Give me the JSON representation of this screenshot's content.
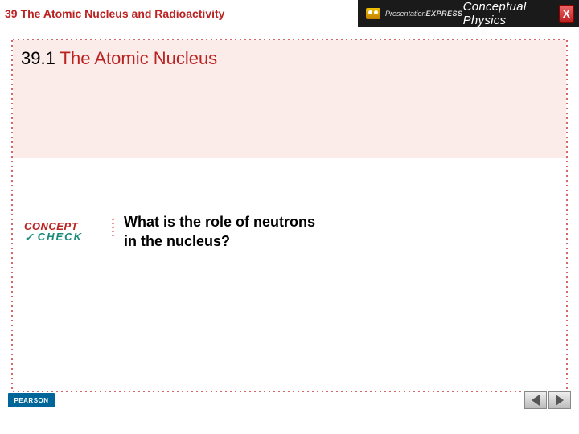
{
  "header": {
    "chapter_num": "39",
    "chapter_title": "The Atomic Nucleus and Radioactivity",
    "brand_prefix": "Presentation",
    "brand_suffix": "EXPRESS",
    "book_title": "Conceptual Physics",
    "close_label": "X"
  },
  "section": {
    "number": "39.1",
    "title": "The Atomic Nucleus"
  },
  "concept_check": {
    "line1": "CONCEPT",
    "line2": "CHECK",
    "question": "What is the role of neutrons\nin the nucleus?"
  },
  "footer": {
    "publisher": "PEARSON"
  },
  "colors": {
    "accent_red": "#b22222",
    "pink_band": "#fbecea",
    "teal": "#1a8a7a",
    "header_dark": "#1a1a1a",
    "pearson_blue": "#006699"
  }
}
